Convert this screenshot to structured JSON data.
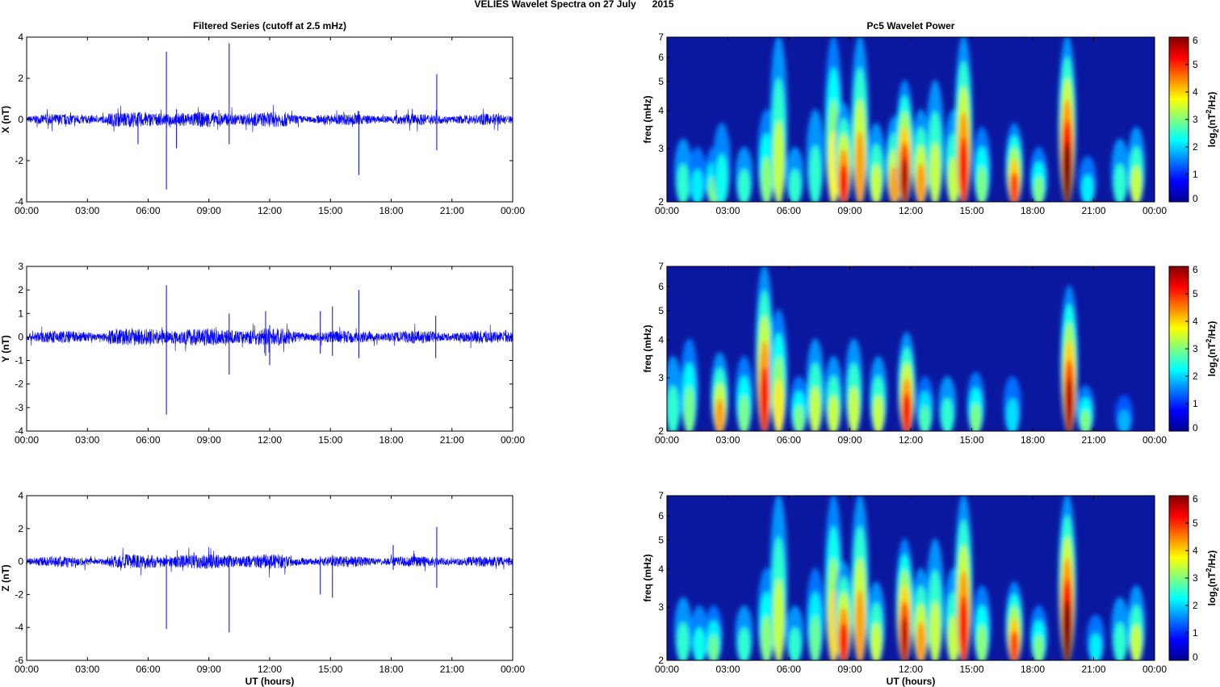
{
  "title": "VELIES Wavelet Spectra on 27 July      2015",
  "left_title": "Filtered Series (cutoff at 2.5 mHz)",
  "right_title": "Pc5 Wavelet Power",
  "xlabel": "UT (hours)",
  "freq_label": "freq (mHz)",
  "colorbar_label": {
    "base": "log",
    "sub": "2",
    "open": "(nT",
    "sup": "2",
    "close": "/Hz)"
  },
  "colors": {
    "series": "#0000ff",
    "background_power": "#0a18a0"
  },
  "chart_data": [
    {
      "type": "line",
      "name": "X",
      "ylabel": "X (nT)",
      "xlim": [
        0,
        24
      ],
      "ylim": [
        -4,
        4
      ],
      "xticks": [
        "00:00",
        "03:00",
        "06:00",
        "09:00",
        "12:00",
        "15:00",
        "18:00",
        "21:00",
        "00:00"
      ],
      "yticks": [
        -4,
        -2,
        0,
        2,
        4
      ],
      "noise_amplitude": 0.25,
      "spikes": [
        [
          6.9,
          3.3,
          -3.4
        ],
        [
          10.0,
          3.7,
          -1.2
        ],
        [
          16.4,
          0.4,
          -2.7
        ],
        [
          20.25,
          2.2,
          -1.5
        ],
        [
          5.5,
          0.3,
          -1.2
        ],
        [
          7.4,
          0.5,
          -1.4
        ]
      ]
    },
    {
      "type": "line",
      "name": "Y",
      "ylabel": "Y (nT)",
      "xlim": [
        0,
        24
      ],
      "ylim": [
        -4,
        3
      ],
      "xticks": [
        "00:00",
        "03:00",
        "06:00",
        "09:00",
        "12:00",
        "15:00",
        "18:00",
        "21:00",
        "00:00"
      ],
      "yticks": [
        -4,
        -3,
        -2,
        -1,
        0,
        1,
        2,
        3
      ],
      "noise_amplitude": 0.25,
      "spikes": [
        [
          6.9,
          2.2,
          -3.3
        ],
        [
          10.0,
          1.0,
          -1.6
        ],
        [
          11.8,
          1.1,
          -0.8
        ],
        [
          12.0,
          0.5,
          -1.2
        ],
        [
          14.5,
          1.1,
          -0.7
        ],
        [
          15.1,
          1.3,
          -0.8
        ],
        [
          16.4,
          2.0,
          -0.9
        ],
        [
          20.2,
          0.9,
          -0.9
        ]
      ]
    },
    {
      "type": "line",
      "name": "Z",
      "ylabel": "Z (nT)",
      "xlim": [
        0,
        24
      ],
      "ylim": [
        -6,
        4
      ],
      "xticks": [
        "00:00",
        "03:00",
        "06:00",
        "09:00",
        "12:00",
        "15:00",
        "18:00",
        "21:00",
        "00:00"
      ],
      "yticks": [
        -6,
        -4,
        -2,
        0,
        2,
        4
      ],
      "noise_amplitude": 0.3,
      "spikes": [
        [
          6.9,
          0.4,
          -4.1
        ],
        [
          10.0,
          0.4,
          -4.3
        ],
        [
          14.5,
          0.3,
          -2.0
        ],
        [
          15.1,
          0.4,
          -2.2
        ],
        [
          18.1,
          1.0,
          -0.5
        ],
        [
          20.25,
          2.1,
          -1.6
        ]
      ]
    },
    {
      "type": "heatmap",
      "name": "X wavelet",
      "ylabel": "freq (mHz)",
      "xlim": [
        0,
        24
      ],
      "ylim": [
        2,
        7
      ],
      "yscale": "log",
      "xticks": [
        "00:00",
        "03:00",
        "06:00",
        "09:00",
        "12:00",
        "15:00",
        "18:00",
        "21:00",
        "00:00"
      ],
      "yticks": [
        2,
        3,
        4,
        5,
        6,
        7
      ],
      "colorbar": {
        "range": [
          0,
          6
        ],
        "ticks": [
          0,
          1,
          2,
          3,
          4,
          5,
          6
        ]
      },
      "blobs_hour_topfreq_power": [
        [
          0.8,
          3.2,
          2
        ],
        [
          1.5,
          3,
          1.6
        ],
        [
          2.3,
          3,
          2.5
        ],
        [
          2.7,
          3.6,
          1.8
        ],
        [
          3.8,
          3,
          2
        ],
        [
          4.9,
          4,
          2.6
        ],
        [
          5.5,
          7,
          3
        ],
        [
          6.3,
          3,
          2
        ],
        [
          7.3,
          4,
          2
        ],
        [
          8.2,
          7,
          3.4
        ],
        [
          8.7,
          4.2,
          5
        ],
        [
          9.5,
          7,
          4
        ],
        [
          10.3,
          3.6,
          3
        ],
        [
          11.2,
          3.8,
          4
        ],
        [
          11.7,
          5,
          5.5
        ],
        [
          12.5,
          4,
          4
        ],
        [
          13.2,
          5,
          3
        ],
        [
          14.1,
          4,
          3
        ],
        [
          14.6,
          7,
          5
        ],
        [
          15.5,
          3.5,
          2.5
        ],
        [
          17.1,
          3.6,
          4.6
        ],
        [
          18.3,
          3,
          2.5
        ],
        [
          19.7,
          7,
          6
        ],
        [
          20.7,
          2.8,
          1.6
        ],
        [
          22.3,
          3.2,
          2
        ],
        [
          23.1,
          3.5,
          3
        ]
      ]
    },
    {
      "type": "heatmap",
      "name": "Y wavelet",
      "ylabel": "freq (mHz)",
      "xlim": [
        0,
        24
      ],
      "ylim": [
        2,
        7
      ],
      "yscale": "log",
      "xticks": [
        "00:00",
        "03:00",
        "06:00",
        "09:00",
        "12:00",
        "15:00",
        "18:00",
        "21:00",
        "00:00"
      ],
      "yticks": [
        2,
        3,
        4,
        5,
        6,
        7
      ],
      "colorbar": {
        "range": [
          0,
          6
        ],
        "ticks": [
          0,
          1,
          2,
          3,
          4,
          5,
          6
        ]
      },
      "blobs_hour_topfreq_power": [
        [
          0.3,
          3.5,
          2
        ],
        [
          1.1,
          4,
          2.5
        ],
        [
          2.6,
          3.6,
          4
        ],
        [
          3.8,
          3.5,
          2.5
        ],
        [
          4.8,
          7,
          5
        ],
        [
          5.5,
          5,
          3.5
        ],
        [
          6.5,
          3,
          2.5
        ],
        [
          7.3,
          4,
          3
        ],
        [
          8.2,
          3.5,
          3
        ],
        [
          9.2,
          4,
          3
        ],
        [
          10.4,
          3.5,
          3
        ],
        [
          11.8,
          4.2,
          5
        ],
        [
          12.7,
          3,
          2.2
        ],
        [
          13.8,
          3,
          2
        ],
        [
          15.2,
          3.1,
          2.5
        ],
        [
          17,
          3,
          1.5
        ],
        [
          19.8,
          6,
          5.5
        ],
        [
          20.6,
          2.8,
          2.5
        ],
        [
          22.5,
          2.6,
          1.2
        ]
      ]
    },
    {
      "type": "heatmap",
      "name": "Z wavelet",
      "ylabel": "freq (mHz)",
      "xlim": [
        0,
        24
      ],
      "ylim": [
        2,
        7
      ],
      "yscale": "log",
      "xticks": [
        "00:00",
        "03:00",
        "06:00",
        "09:00",
        "12:00",
        "15:00",
        "18:00",
        "21:00",
        "00:00"
      ],
      "yticks": [
        2,
        3,
        4,
        5,
        6,
        7
      ],
      "colorbar": {
        "range": [
          0,
          6
        ],
        "ticks": [
          0,
          1,
          2,
          3,
          4,
          5,
          6
        ]
      },
      "blobs_hour_topfreq_power": [
        [
          0.8,
          3.2,
          2
        ],
        [
          1.6,
          3,
          1.8
        ],
        [
          2.3,
          3,
          2.4
        ],
        [
          3.8,
          3,
          2
        ],
        [
          4.9,
          4,
          2.6
        ],
        [
          5.5,
          7,
          3
        ],
        [
          6.3,
          3,
          2
        ],
        [
          7.3,
          4,
          2.4
        ],
        [
          8.2,
          7,
          3.6
        ],
        [
          8.7,
          4.2,
          5
        ],
        [
          9.5,
          7,
          4
        ],
        [
          10.3,
          3.6,
          3
        ],
        [
          11.7,
          5,
          5.4
        ],
        [
          12.5,
          4,
          4
        ],
        [
          13.2,
          5,
          3
        ],
        [
          14.1,
          4,
          3
        ],
        [
          14.6,
          7,
          5
        ],
        [
          15.5,
          3.5,
          2.6
        ],
        [
          17.1,
          3.6,
          4.6
        ],
        [
          18.3,
          3,
          2.5
        ],
        [
          19.7,
          7,
          6
        ],
        [
          21.1,
          2.8,
          1.6
        ],
        [
          22.3,
          3.2,
          2
        ],
        [
          23.1,
          3.5,
          3
        ]
      ]
    }
  ]
}
